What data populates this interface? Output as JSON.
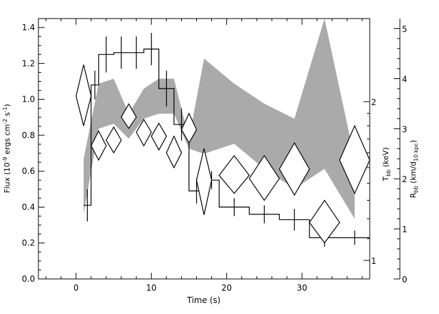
{
  "chart_data": {
    "type": "line",
    "xlabel": "Time (s)",
    "ylabel_left": "Flux (10⁻⁹ ergs cm⁻² s⁻¹)",
    "ylabel_right_inner": "T_bb (keV)",
    "ylabel_right_outer": "R_bb (km/d_10 kpc)",
    "xlim": [
      -5,
      39
    ],
    "ylim": [
      0,
      1.45
    ],
    "x_ticks": [
      "0",
      "10",
      "20",
      "30"
    ],
    "y_ticks": [
      "0.0",
      "0.2",
      "0.4",
      "0.6",
      "0.8",
      "1.0",
      "1.2",
      "1.4"
    ],
    "kT_axis": {
      "scale": "log",
      "ticks": [
        "1",
        "2"
      ]
    },
    "R_axis": {
      "ylim": [
        0,
        5.2
      ],
      "ticks": [
        "0",
        "1",
        "2",
        "3",
        "4",
        "5"
      ]
    },
    "flux_series": {
      "bin_edges": [
        1,
        2,
        3,
        5,
        7,
        9,
        11,
        13,
        15,
        17,
        19,
        23,
        27,
        31,
        35,
        39
      ],
      "values": [
        0.41,
        1.08,
        1.25,
        1.26,
        1.26,
        1.28,
        1.06,
        0.86,
        0.49,
        0.55,
        0.4,
        0.36,
        0.33,
        0.23,
        0.23
      ],
      "errors": [
        0.09,
        0.08,
        0.1,
        0.09,
        0.09,
        0.09,
        0.1,
        0.09,
        0.07,
        0.05,
        0.05,
        0.05,
        0.06,
        0.05,
        0.04
      ]
    },
    "radius_band": {
      "x": [
        1,
        3,
        5,
        7,
        9,
        11,
        13,
        15,
        17,
        21,
        25,
        29,
        33,
        37
      ],
      "upper": [
        2.4,
        3.9,
        4.0,
        3.3,
        3.8,
        4.0,
        4.0,
        2.8,
        4.4,
        3.9,
        3.5,
        3.2,
        5.2,
        2.4
      ],
      "lower": [
        1.3,
        3.0,
        3.1,
        2.8,
        3.2,
        3.3,
        3.3,
        2.6,
        2.5,
        2.7,
        2.2,
        1.8,
        2.2,
        1.2
      ]
    },
    "temperature_diamonds": {
      "x": [
        1,
        3,
        5,
        7,
        9,
        11,
        13,
        15,
        17,
        21,
        25,
        29,
        33,
        37
      ],
      "x_halfwidth": [
        1,
        1,
        1,
        1,
        1,
        1,
        1,
        1,
        1,
        2,
        2,
        2,
        2,
        2
      ],
      "kT": [
        2.05,
        1.65,
        1.69,
        1.87,
        1.75,
        1.72,
        1.6,
        1.77,
        1.42,
        1.45,
        1.43,
        1.49,
        1.18,
        1.55
      ],
      "kT_low": [
        1.8,
        1.55,
        1.6,
        1.78,
        1.65,
        1.62,
        1.5,
        1.67,
        1.22,
        1.34,
        1.3,
        1.33,
        1.08,
        1.34
      ],
      "kT_high": [
        2.35,
        1.76,
        1.79,
        1.98,
        1.85,
        1.82,
        1.72,
        1.9,
        1.63,
        1.58,
        1.58,
        1.67,
        1.3,
        1.8
      ]
    }
  }
}
